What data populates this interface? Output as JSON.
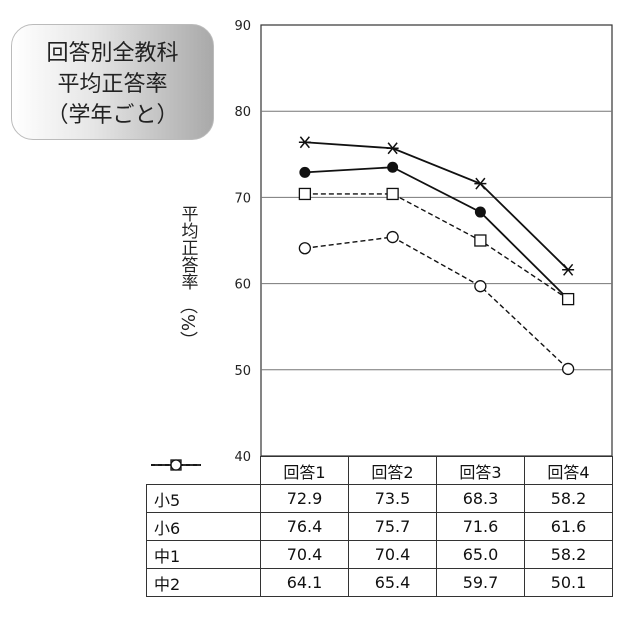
{
  "title": [
    "回答別全教科",
    "平均正答率",
    "（学年ごと）"
  ],
  "ylabel": "平均正答率",
  "yunit": "（%）",
  "chart_data": {
    "type": "line",
    "categories": [
      "回答1",
      "回答2",
      "回答3",
      "回答4"
    ],
    "ylim": [
      40,
      90
    ],
    "yticks": [
      "40",
      "50",
      "60",
      "70",
      "80",
      "90"
    ],
    "grid": true,
    "series": [
      {
        "name": "小5",
        "values": [
          72.9,
          73.5,
          68.3,
          58.2
        ],
        "marker": "filled-circle",
        "line": "solid"
      },
      {
        "name": "小6",
        "values": [
          76.4,
          75.7,
          71.6,
          61.6
        ],
        "marker": "asterisk",
        "line": "solid"
      },
      {
        "name": "中1",
        "values": [
          70.4,
          70.4,
          65.0,
          58.2
        ],
        "marker": "open-square",
        "line": "dashed"
      },
      {
        "name": "中2",
        "values": [
          64.1,
          65.4,
          59.7,
          50.1
        ],
        "marker": "open-circle",
        "line": "dashed"
      }
    ],
    "table_values": [
      [
        "72.9",
        "73.5",
        "68.3",
        "58.2"
      ],
      [
        "76.4",
        "75.7",
        "71.6",
        "61.6"
      ],
      [
        "70.4",
        "70.4",
        "65.0",
        "58.2"
      ],
      [
        "64.1",
        "65.4",
        "59.7",
        "50.1"
      ]
    ]
  }
}
